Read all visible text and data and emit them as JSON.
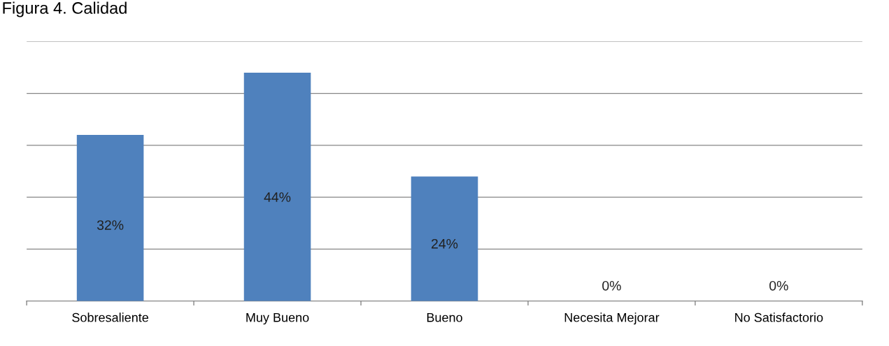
{
  "chart_data": {
    "type": "bar",
    "title": "Figura 4. Calidad",
    "categories": [
      "Sobresaliente",
      "Muy Bueno",
      "Bueno",
      "Necesita Mejorar",
      "No Satisfactorio"
    ],
    "values": [
      32,
      44,
      24,
      0,
      0
    ],
    "color": "#4f81bd",
    "value_labels": [
      "32%",
      "44%",
      "24%",
      "0%",
      "0%"
    ],
    "ylim": [
      0,
      50
    ],
    "yticks": [
      {
        "value": 0,
        "label": null
      },
      {
        "value": 10,
        "label": null
      },
      {
        "value": 20,
        "label": null
      },
      {
        "value": 30,
        "label": null
      },
      {
        "value": 40,
        "label": null
      },
      {
        "value": 50,
        "label": null
      }
    ],
    "tick_labels": "x",
    "grid": "y",
    "legend": false
  }
}
